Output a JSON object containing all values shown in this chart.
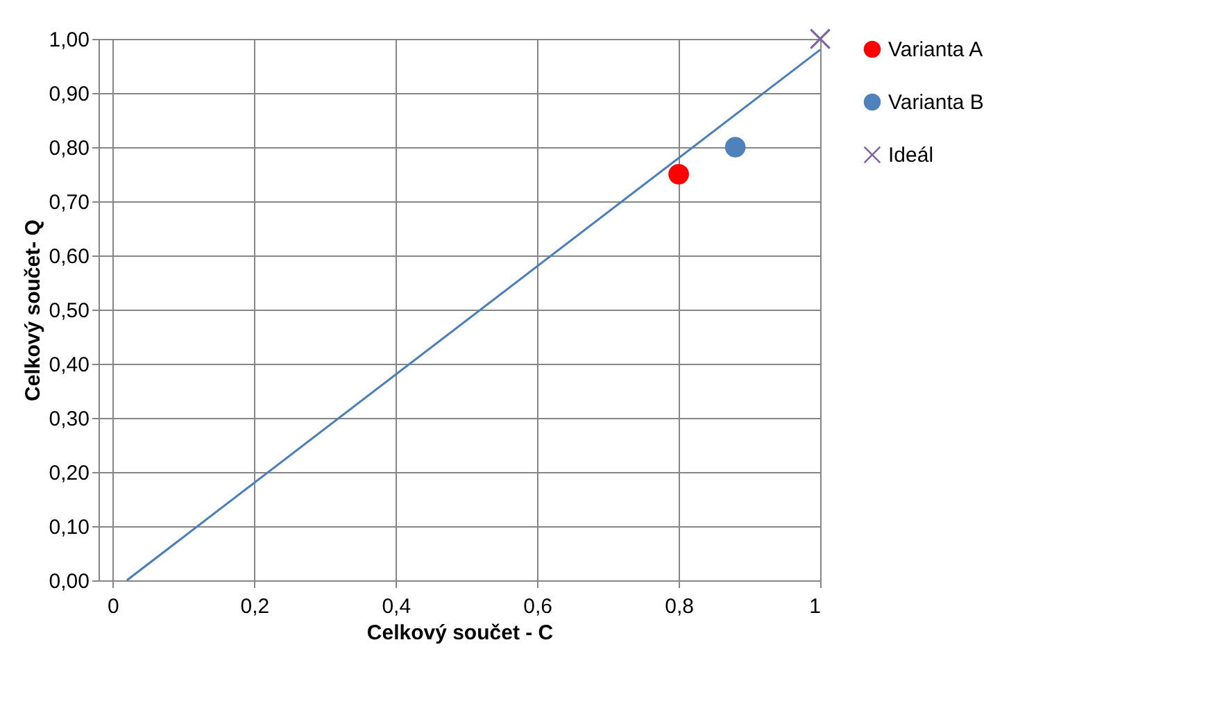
{
  "chart_data": {
    "type": "scatter",
    "xlabel": "Celkový součet - C",
    "ylabel": "Celkový součet- Q",
    "xlim": [
      -0.02,
      1.0
    ],
    "ylim": [
      0.0,
      1.0
    ],
    "xticks": [
      0,
      {
        "value": 0.2,
        "label": "0,2"
      },
      {
        "value": 0.4,
        "label": "0,4"
      },
      {
        "value": 0.6,
        "label": "0,6"
      },
      {
        "value": 0.8,
        "label": "0,8"
      },
      1
    ],
    "yticks": [
      {
        "value": 0,
        "label": "0,00"
      },
      {
        "value": 0.1,
        "label": "0,10"
      },
      {
        "value": 0.2,
        "label": "0,20"
      },
      {
        "value": 0.3,
        "label": "0,30"
      },
      {
        "value": 0.4,
        "label": "0,40"
      },
      {
        "value": 0.5,
        "label": "0,50"
      },
      {
        "value": 0.6,
        "label": "0,60"
      },
      {
        "value": 0.7,
        "label": "0,70"
      },
      {
        "value": 0.8,
        "label": "0,80"
      },
      {
        "value": 0.9,
        "label": "0,90"
      },
      {
        "value": 1.0,
        "label": "1,00"
      }
    ],
    "grid": true,
    "legend": "right",
    "series": [
      {
        "name": "Varianta A",
        "color": "#ff0000",
        "marker": "circle",
        "x": [
          0.8
        ],
        "values": [
          0.75
        ]
      },
      {
        "name": "Varianta B",
        "color": "#4f81bd",
        "marker": "circle",
        "x": [
          0.88
        ],
        "values": [
          0.8
        ]
      },
      {
        "name": "Ideál",
        "color": "#8064a2",
        "marker": "cross",
        "x": [
          1.0
        ],
        "values": [
          1.0
        ]
      },
      {
        "type": "line",
        "color": "#4a7ebb",
        "line_style": "solid",
        "x": [
          0.02,
          1.0
        ],
        "values": [
          0.0,
          0.98
        ]
      }
    ]
  }
}
